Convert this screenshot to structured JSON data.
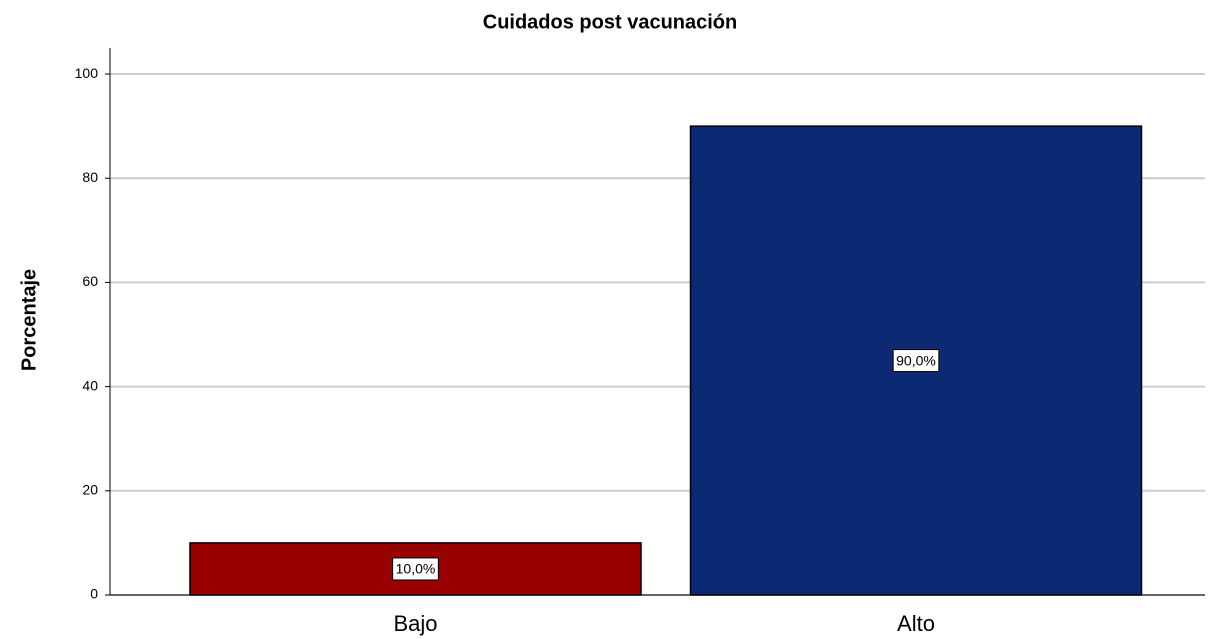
{
  "chart_data": {
    "type": "bar",
    "title": "Cuidados post vacunación",
    "ylabel": "Porcentaje",
    "categories": [
      "Bajo",
      "Alto"
    ],
    "values": [
      10,
      90
    ],
    "value_labels": [
      "10,0%",
      "90,0%"
    ],
    "colors": [
      "#990000",
      "#0c2a73"
    ],
    "ylim": [
      0,
      105
    ],
    "yticks": [
      0,
      20,
      40,
      60,
      80,
      100
    ],
    "grid": true
  }
}
